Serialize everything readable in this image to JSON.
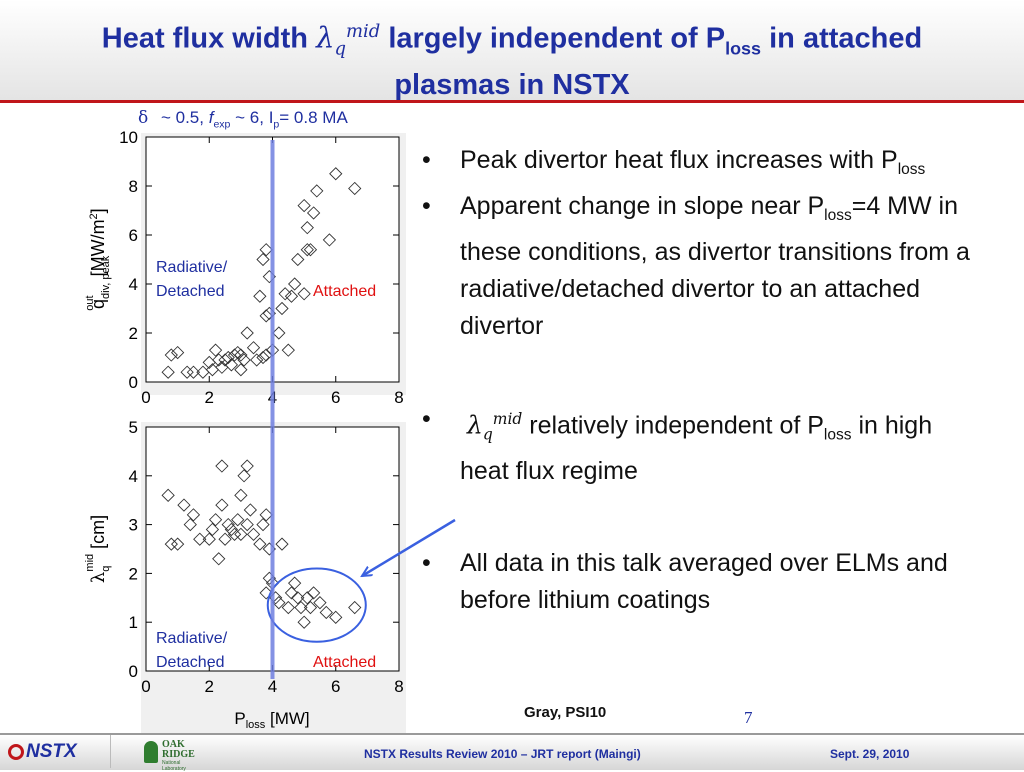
{
  "title": {
    "part1": "Heat flux width ",
    "lambda": "λ",
    "q": "q",
    "mid": "mid",
    "part2": " largely independent of P",
    "loss": "loss",
    "part3": " in attached",
    "line2": "plasmas in NSTX"
  },
  "conditions": {
    "delta": "δ",
    "text1": " ~ 0.5, ",
    "f": "f",
    "exp": "exp",
    "text2": " ~ 6, I",
    "p": "p",
    "text3": "= 0.8 MA"
  },
  "bullets": [
    {
      "text": "Peak divertor heat flux increases with P",
      "sub": "loss"
    },
    {
      "text": "Apparent change in slope near P",
      "sub": "loss",
      "tail": "=4 MW in these conditions, as divertor transitions from a radiative/detached divertor to an attached divertor"
    },
    {
      "lambda": "λ",
      "q": "q",
      "mid": "mid",
      "text": " relatively independent of P",
      "sub": "loss",
      "tail": " in high heat flux regime"
    },
    {
      "text": "All data in this talk averaged over ELMs and before lithium coatings"
    }
  ],
  "bullet_glyph": "•",
  "credit": "Gray, PSI10",
  "page_number": "7",
  "footer": {
    "center": "NSTX Results Review 2010 – JRT report (Maingi)",
    "date": "Sept. 29, 2010",
    "logo_nstx": "NSTX",
    "logo_oak": "OAK",
    "logo_ridge": "RIDGE",
    "logo_lab": "National Laboratory"
  },
  "colors": {
    "title": "#1f2fa0",
    "accent_rule": "#c0161a",
    "radiative_label": "#1f2fa0",
    "attached_label": "#e01010",
    "threshold_line": "#6f7fe0",
    "annotation_arrow": "#3a60e0"
  },
  "chart_data": [
    {
      "type": "scatter",
      "panel": "top",
      "ylabel": {
        "q": "q",
        "sub": "div, peak",
        "sup": "out",
        "unit": " [MW/m",
        "unit_sup": "2",
        "unit_close": "]"
      },
      "xlim": [
        0,
        8
      ],
      "ylim": [
        0,
        10
      ],
      "xticks": [
        "0",
        "2",
        "4",
        "6",
        "8"
      ],
      "yticks": [
        "0",
        "2",
        "4",
        "6",
        "8",
        "10"
      ],
      "marker": "diamond",
      "threshold_x": 4,
      "region_labels": {
        "left": [
          "Radiative/",
          "Detached"
        ],
        "right": "Attached"
      },
      "points": [
        [
          0.7,
          0.4
        ],
        [
          0.8,
          1.1
        ],
        [
          1.0,
          1.2
        ],
        [
          1.3,
          0.4
        ],
        [
          1.5,
          0.4
        ],
        [
          1.8,
          0.4
        ],
        [
          2.0,
          0.8
        ],
        [
          2.1,
          0.5
        ],
        [
          2.2,
          1.3
        ],
        [
          2.3,
          0.9
        ],
        [
          2.4,
          0.6
        ],
        [
          2.5,
          0.9
        ],
        [
          2.6,
          1.0
        ],
        [
          2.7,
          0.7
        ],
        [
          2.8,
          1.1
        ],
        [
          2.9,
          1.2
        ],
        [
          3.0,
          0.5
        ],
        [
          3.1,
          0.9
        ],
        [
          3.0,
          1.1
        ],
        [
          3.2,
          2.0
        ],
        [
          3.4,
          1.4
        ],
        [
          3.5,
          0.9
        ],
        [
          3.7,
          1.0
        ],
        [
          3.8,
          1.1
        ],
        [
          3.6,
          3.5
        ],
        [
          3.8,
          2.7
        ],
        [
          3.9,
          2.8
        ],
        [
          3.9,
          4.3
        ],
        [
          3.7,
          5.0
        ],
        [
          3.8,
          5.4
        ],
        [
          4.0,
          1.3
        ],
        [
          4.2,
          2.0
        ],
        [
          4.3,
          3.0
        ],
        [
          4.4,
          3.6
        ],
        [
          4.5,
          1.3
        ],
        [
          4.6,
          3.5
        ],
        [
          4.7,
          4.0
        ],
        [
          4.8,
          5.0
        ],
        [
          5.0,
          3.6
        ],
        [
          5.1,
          5.4
        ],
        [
          5.1,
          6.3
        ],
        [
          5.2,
          5.4
        ],
        [
          5.0,
          7.2
        ],
        [
          5.3,
          6.9
        ],
        [
          5.4,
          7.8
        ],
        [
          5.8,
          5.8
        ],
        [
          6.0,
          8.5
        ],
        [
          6.6,
          7.9
        ]
      ]
    },
    {
      "type": "scatter",
      "panel": "bottom",
      "ylabel": {
        "lambda": "λ",
        "sub": "q",
        "sup": "mid",
        "unit": " [cm]"
      },
      "xlabel": {
        "p": "P",
        "sub": "loss",
        "unit": " [MW]"
      },
      "xlim": [
        0,
        8
      ],
      "ylim": [
        0,
        5
      ],
      "xticks": [
        "0",
        "2",
        "4",
        "6",
        "8"
      ],
      "yticks": [
        "0",
        "1",
        "2",
        "3",
        "4",
        "5"
      ],
      "marker": "diamond",
      "threshold_x": 4,
      "region_labels": {
        "left": [
          "Radiative/",
          "Detached"
        ],
        "right": "Attached"
      },
      "highlight": {
        "cx": 5.4,
        "cy": 1.35,
        "rx": 1.55,
        "ry": 0.75
      },
      "points": [
        [
          0.7,
          3.6
        ],
        [
          0.8,
          2.6
        ],
        [
          1.0,
          2.6
        ],
        [
          1.2,
          3.4
        ],
        [
          1.4,
          3.0
        ],
        [
          1.5,
          3.2
        ],
        [
          1.7,
          2.7
        ],
        [
          2.0,
          2.7
        ],
        [
          2.1,
          2.9
        ],
        [
          2.2,
          3.1
        ],
        [
          2.3,
          2.3
        ],
        [
          2.4,
          3.4
        ],
        [
          2.4,
          4.2
        ],
        [
          2.5,
          2.7
        ],
        [
          2.6,
          3.0
        ],
        [
          2.7,
          2.9
        ],
        [
          2.8,
          2.8
        ],
        [
          2.9,
          3.1
        ],
        [
          3.0,
          3.6
        ],
        [
          3.0,
          2.8
        ],
        [
          3.1,
          4.0
        ],
        [
          3.2,
          4.2
        ],
        [
          3.2,
          3.0
        ],
        [
          3.3,
          3.3
        ],
        [
          3.4,
          2.8
        ],
        [
          3.6,
          2.6
        ],
        [
          3.7,
          3.0
        ],
        [
          3.8,
          3.2
        ],
        [
          3.9,
          2.5
        ],
        [
          3.9,
          1.9
        ],
        [
          3.8,
          1.6
        ],
        [
          4.0,
          1.8
        ],
        [
          4.1,
          1.5
        ],
        [
          4.2,
          1.4
        ],
        [
          4.3,
          2.6
        ],
        [
          4.5,
          1.3
        ],
        [
          4.6,
          1.6
        ],
        [
          4.7,
          1.8
        ],
        [
          4.8,
          1.5
        ],
        [
          4.9,
          1.3
        ],
        [
          5.0,
          1.0
        ],
        [
          5.1,
          1.5
        ],
        [
          5.2,
          1.3
        ],
        [
          5.3,
          1.6
        ],
        [
          5.5,
          1.4
        ],
        [
          5.7,
          1.2
        ],
        [
          6.0,
          1.1
        ],
        [
          6.6,
          1.3
        ]
      ]
    }
  ]
}
